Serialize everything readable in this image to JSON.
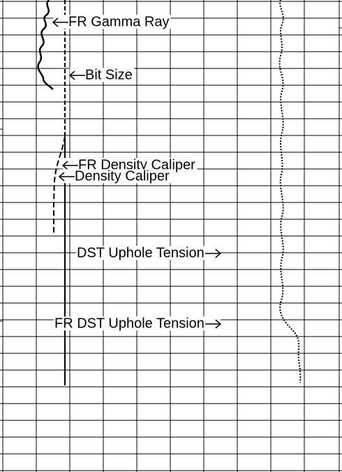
{
  "curve_labels": [
    "FR Gamma Ray",
    "Bit Size",
    "FR Density Caliper",
    "Density Caliper",
    "DST Uphole Tension",
    "FR DST Uphole Tension"
  ]
}
